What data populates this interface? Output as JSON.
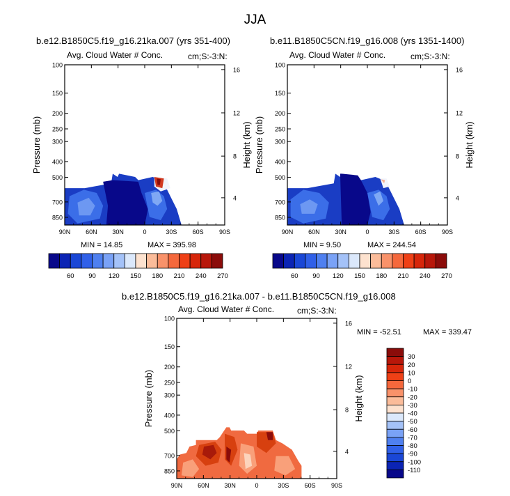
{
  "chart_data": {
    "type": "heatmap",
    "title": "JJA",
    "panels": [
      {
        "id": "p1",
        "title": "b.e12.B1850C5.f19_g16.21ka.007 (yrs 351-400)",
        "left_label": "Avg. Cloud Water # Conc.",
        "right_label": "cm;S:-3:N:",
        "ylabel": "Pressure (mb)",
        "y2label": "Height (km)",
        "xticks": [
          "90N",
          "60N",
          "30N",
          "0",
          "30S",
          "60S",
          "90S"
        ],
        "yticks": [
          "100",
          "150",
          "200",
          "250",
          "300",
          "400",
          "500",
          "700",
          "850"
        ],
        "y2ticks": [
          "16",
          "12",
          "8",
          "4"
        ],
        "min_label": "MIN =  14.85",
        "max_label": "MAX = 395.98"
      },
      {
        "id": "p2",
        "title": "b.e11.B1850C5CN.f19_g16.008 (yrs 1351-1400)",
        "left_label": "Avg. Cloud Water # Conc.",
        "right_label": "cm;S:-3:N:",
        "ylabel": "Pressure (mb)",
        "y2label": "Height (km)",
        "xticks": [
          "90N",
          "60N",
          "30N",
          "0",
          "30S",
          "60S",
          "90S"
        ],
        "yticks": [
          "100",
          "150",
          "200",
          "250",
          "300",
          "400",
          "500",
          "700",
          "850"
        ],
        "y2ticks": [
          "16",
          "12",
          "8",
          "4"
        ],
        "min_label": "MIN =   9.50",
        "max_label": "MAX = 244.54"
      },
      {
        "id": "p3",
        "title": "b.e12.B1850C5.f19_g16.21ka.007 - b.e11.B1850C5CN.f19_g16.008",
        "left_label": "Avg. Cloud Water # Conc.",
        "right_label": "cm;S:-3:N:",
        "ylabel": "Pressure (mb)",
        "y2label": "Height (km)",
        "xticks": [
          "90N",
          "60N",
          "30N",
          "0",
          "30S",
          "60S",
          "90S"
        ],
        "yticks": [
          "100",
          "150",
          "200",
          "250",
          "300",
          "400",
          "500",
          "700",
          "850"
        ],
        "y2ticks": [
          "16",
          "12",
          "8",
          "4"
        ],
        "min_label": "MIN = -52.51",
        "max_label": "MAX = 339.47"
      }
    ],
    "colorbar_top": {
      "labels": [
        "60",
        "90",
        "120",
        "150",
        "180",
        "210",
        "240",
        "270"
      ],
      "colors": [
        "#08088a",
        "#0b24b4",
        "#1a47d6",
        "#3060e8",
        "#4f80f0",
        "#7aa2f6",
        "#a4c2f8",
        "#dbe8fb",
        "#fde2cf",
        "#fbbc9a",
        "#f9926a",
        "#f5683c",
        "#ef4016",
        "#d7260a",
        "#b8170a",
        "#8b0c0a"
      ]
    },
    "colorbar_diff": {
      "labels": [
        "30",
        "20",
        "10",
        "0",
        "-10",
        "-20",
        "-30",
        "-40",
        "-50",
        "-60",
        "-70",
        "-80",
        "-90",
        "-100",
        "-110"
      ],
      "colors": [
        "#8b0c0a",
        "#b8170a",
        "#d7260a",
        "#ef4016",
        "#f5683c",
        "#f9926a",
        "#fbbc9a",
        "#fde2cf",
        "#dbe8fb",
        "#a4c2f8",
        "#7aa2f6",
        "#4f80f0",
        "#3060e8",
        "#1a47d6",
        "#0b24b4",
        "#08088a"
      ]
    }
  }
}
